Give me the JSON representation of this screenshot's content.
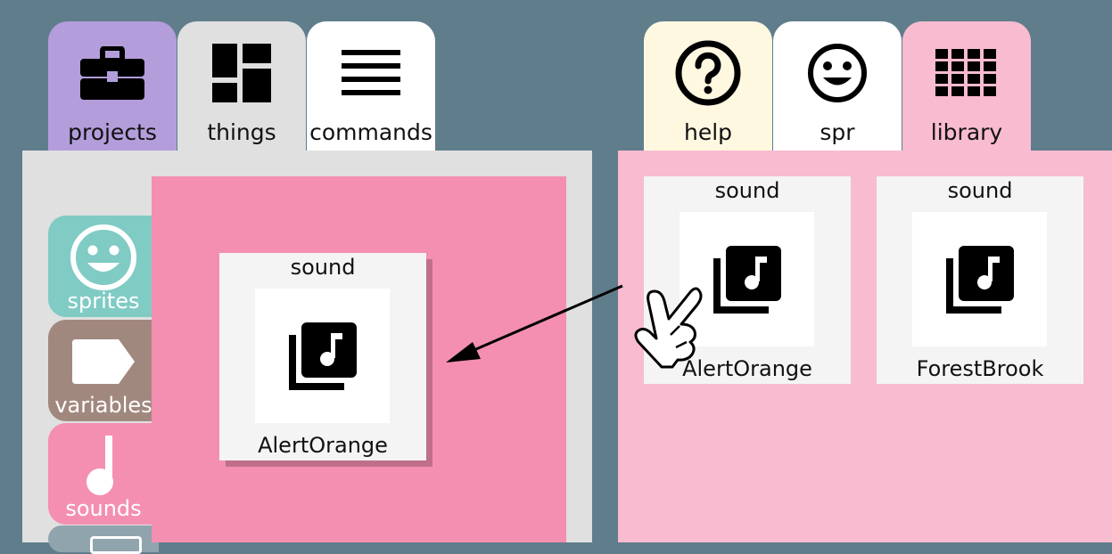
{
  "tabs_left": [
    {
      "label": "projects",
      "icon": "briefcase-icon",
      "color": "#b39ddb"
    },
    {
      "label": "things",
      "icon": "dashboard-icon",
      "color": "#e0e0e0"
    },
    {
      "label": "commands",
      "icon": "list-icon",
      "color": "#ffffff"
    }
  ],
  "tabs_right": [
    {
      "label": "help",
      "icon": "help-circle-icon",
      "color": "#fff8e1"
    },
    {
      "label": "spr",
      "icon": "smiley-icon",
      "color": "#ffffff"
    },
    {
      "label": "library",
      "icon": "grid-icon",
      "color": "#f8bbd0"
    }
  ],
  "categories": [
    {
      "label": "sprites",
      "icon": "smiley-icon",
      "color": "#80cbc4"
    },
    {
      "label": "variables",
      "icon": "label-icon",
      "color": "#a1887f"
    },
    {
      "label": "sounds",
      "icon": "music-note-icon",
      "color": "#f48fb1"
    }
  ],
  "stage_card": {
    "type": "sound",
    "name": "AlertOrange",
    "icon": "music-library-icon"
  },
  "library_cards": [
    {
      "type": "sound",
      "name": "AlertOrange",
      "icon": "music-library-icon"
    },
    {
      "type": "sound",
      "name": "ForestBrook",
      "icon": "music-library-icon"
    }
  ],
  "colors": {
    "background": "#607d8b",
    "left_panel": "#e0e0e0",
    "right_panel": "#f8bbd0",
    "stage": "#f48fb1",
    "card": "#f4f4f4"
  }
}
